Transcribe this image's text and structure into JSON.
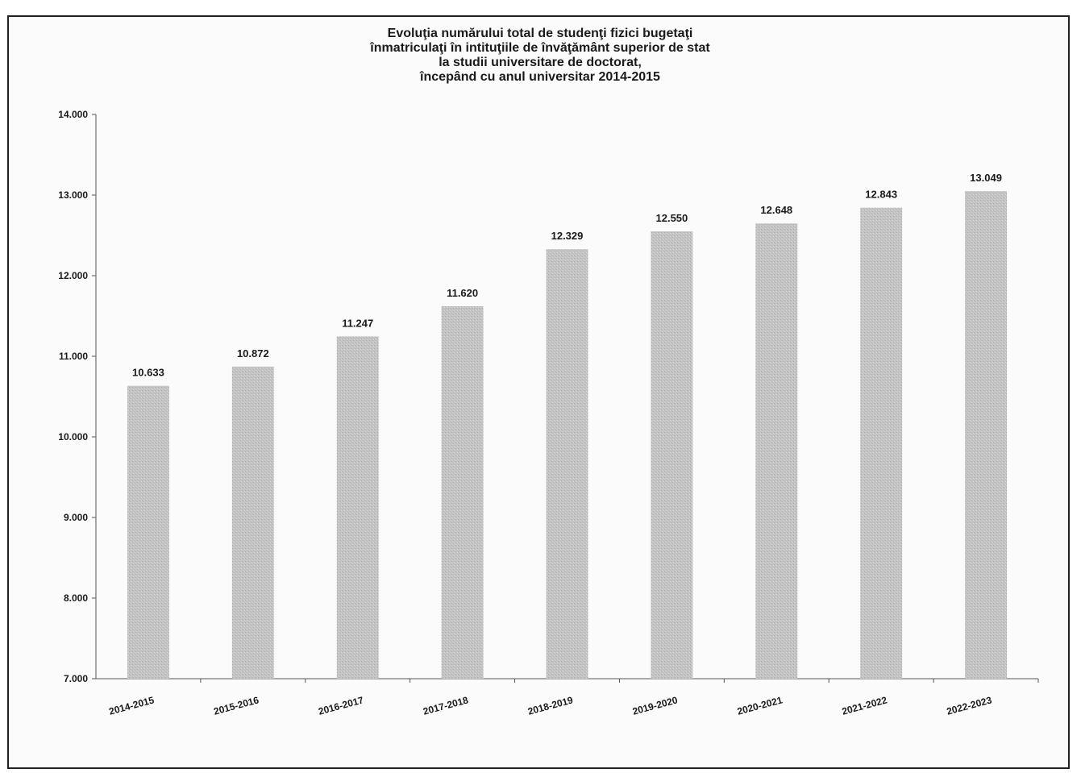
{
  "chart_data": {
    "type": "bar",
    "title_lines": [
      "Evoluţia numărului total de studenţi fizici bugetaţi",
      "înmatriculaţi în intituţiile de învăţământ superior de stat",
      "la studii universitare de doctorat,",
      "începând cu anul universitar 2014-2015"
    ],
    "categories": [
      "2014-2015",
      "2015-2016",
      "2016-2017",
      "2017-2018",
      "2018-2019",
      "2019-2020",
      "2020-2021",
      "2021-2022",
      "2022-2023"
    ],
    "values": [
      10633,
      10872,
      11247,
      11620,
      12329,
      12550,
      12648,
      12843,
      13049
    ],
    "value_labels": [
      "10.633",
      "10.872",
      "11.247",
      "11.620",
      "12.329",
      "12.550",
      "12.648",
      "12.843",
      "13.049"
    ],
    "ylim": [
      7000,
      14000
    ],
    "yticks": [
      7000,
      8000,
      9000,
      10000,
      11000,
      12000,
      13000,
      14000
    ],
    "ytick_labels": [
      "7.000",
      "8.000",
      "9.000",
      "10.000",
      "11.000",
      "12.000",
      "13.000",
      "14.000"
    ],
    "xlabel": "",
    "ylabel": "",
    "grid": false,
    "legend": "none",
    "bar_color": "#c4c4c4",
    "axis_color": "#555555"
  }
}
